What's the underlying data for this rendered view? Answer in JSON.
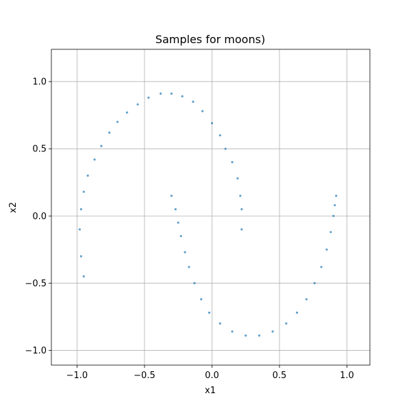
{
  "chart_data": {
    "type": "scatter",
    "title": "Samples for moons)",
    "xlabel": "x1",
    "ylabel": "x2",
    "xlim": [
      -1.19,
      1.17
    ],
    "ylim": [
      -1.11,
      1.24
    ],
    "xticks": [
      -1.0,
      -0.5,
      0.0,
      0.5,
      1.0
    ],
    "yticks": [
      -1.0,
      -0.5,
      0.0,
      0.5,
      1.0
    ],
    "xtick_labels": [
      "−1.0",
      "−0.5",
      "0.0",
      "0.5",
      "1.0"
    ],
    "ytick_labels": [
      "−1.0",
      "−0.5",
      "0.0",
      "0.5",
      "1.0"
    ],
    "grid": true,
    "point_color": "#1f77b4",
    "point_alpha": 0.7,
    "series": [
      {
        "points": [
          [
            -0.95,
            -0.45
          ],
          [
            -0.97,
            -0.3
          ],
          [
            -0.98,
            -0.1
          ],
          [
            -0.97,
            0.05
          ],
          [
            -0.95,
            0.18
          ],
          [
            -0.92,
            0.3
          ],
          [
            -0.87,
            0.42
          ],
          [
            -0.82,
            0.52
          ],
          [
            -0.76,
            0.62
          ],
          [
            -0.7,
            0.7
          ],
          [
            -0.63,
            0.77
          ],
          [
            -0.55,
            0.83
          ],
          [
            -0.47,
            0.88
          ],
          [
            -0.38,
            0.91
          ],
          [
            -0.3,
            0.91
          ],
          [
            -0.22,
            0.89
          ],
          [
            -0.14,
            0.85
          ],
          [
            -0.07,
            0.78
          ],
          [
            0.0,
            0.69
          ],
          [
            0.06,
            0.6
          ],
          [
            0.1,
            0.5
          ],
          [
            0.15,
            0.4
          ],
          [
            0.19,
            0.28
          ],
          [
            0.21,
            0.15
          ],
          [
            0.22,
            0.05
          ],
          [
            0.22,
            -0.1
          ],
          [
            -0.3,
            0.15
          ],
          [
            -0.27,
            0.05
          ],
          [
            -0.25,
            -0.05
          ],
          [
            -0.23,
            -0.15
          ],
          [
            -0.2,
            -0.27
          ],
          [
            -0.17,
            -0.38
          ],
          [
            -0.13,
            -0.5
          ],
          [
            -0.08,
            -0.62
          ],
          [
            -0.02,
            -0.72
          ],
          [
            0.06,
            -0.8
          ],
          [
            0.15,
            -0.86
          ],
          [
            0.25,
            -0.89
          ],
          [
            0.35,
            -0.89
          ],
          [
            0.45,
            -0.86
          ],
          [
            0.55,
            -0.8
          ],
          [
            0.63,
            -0.72
          ],
          [
            0.7,
            -0.62
          ],
          [
            0.76,
            -0.5
          ],
          [
            0.81,
            -0.38
          ],
          [
            0.85,
            -0.25
          ],
          [
            0.88,
            -0.12
          ],
          [
            0.9,
            0.0
          ],
          [
            0.91,
            0.08
          ],
          [
            0.92,
            0.15
          ]
        ]
      }
    ]
  }
}
